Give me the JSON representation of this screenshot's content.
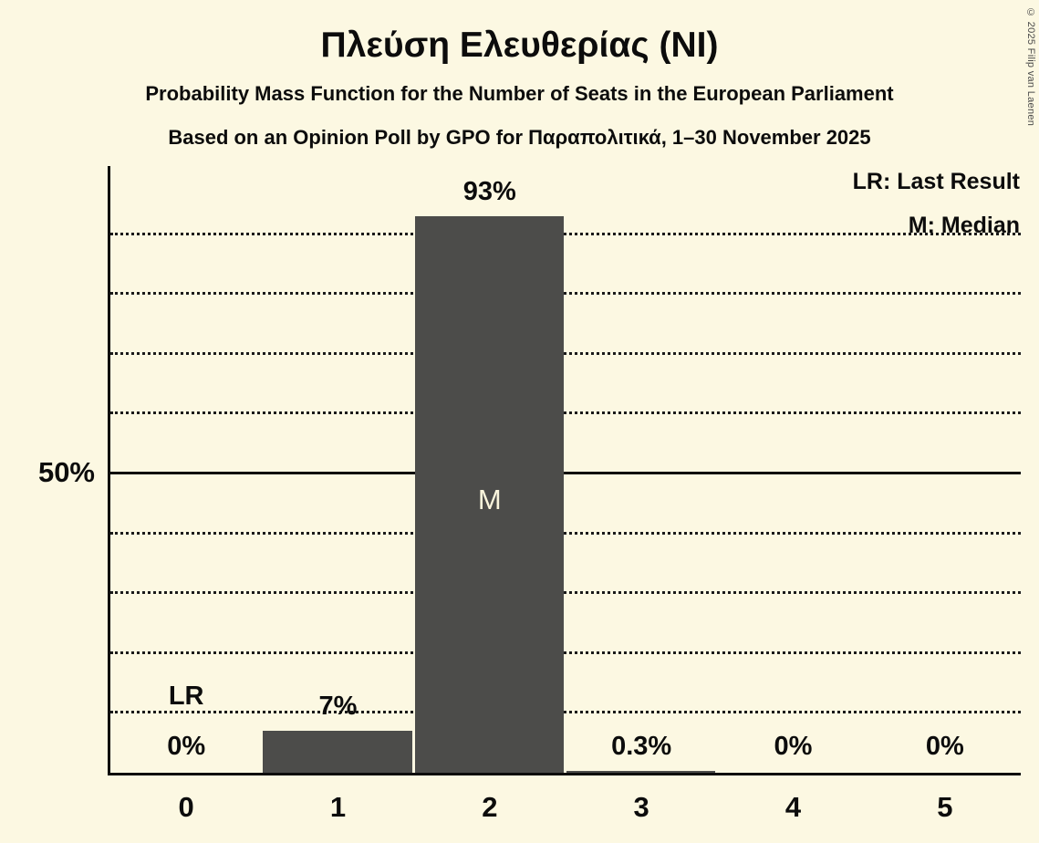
{
  "header": {
    "title": "Πλεύση Ελευθερίας (ΝΙ)",
    "subtitle1": "Probability Mass Function for the Number of Seats in the European Parliament",
    "subtitle2": "Based on an Opinion Poll by GPO for Παραπολιτικά, 1–30 November 2025"
  },
  "legend": {
    "lr": "LR: Last Result",
    "m": "M: Median"
  },
  "copyright": "© 2025 Filip van Laenen",
  "chart_data": {
    "type": "bar",
    "title": "Πλεύση Ελευθερίας (ΝΙ)",
    "xlabel": "Number of Seats",
    "ylabel": "Probability",
    "categories": [
      "0",
      "1",
      "2",
      "3",
      "4",
      "5"
    ],
    "values": [
      0,
      7,
      93,
      0.3,
      0,
      0
    ],
    "value_labels": [
      "0%",
      "7%",
      "93%",
      "0.3%",
      "0%",
      "0%"
    ],
    "annotations": [
      {
        "label": "LR",
        "category_index": 0,
        "placement": "above_value_label"
      },
      {
        "label": "M",
        "category_index": 2,
        "placement": "inside_bar"
      }
    ],
    "ylim": [
      0,
      100
    ],
    "y_tick_labels": [
      "50%"
    ],
    "y_tick_value": 50,
    "gridlines_pct": [
      10,
      20,
      30,
      40,
      50,
      60,
      70,
      80,
      90
    ],
    "solid_gridline_pct": 50,
    "legend_position": "top-right",
    "grid": "dotted-horizontal",
    "colors": {
      "background": "#fcf8e2",
      "bar": "#4c4c4a",
      "text": "#0c0c0c",
      "inside_bar_label": "#faf5dc"
    }
  }
}
